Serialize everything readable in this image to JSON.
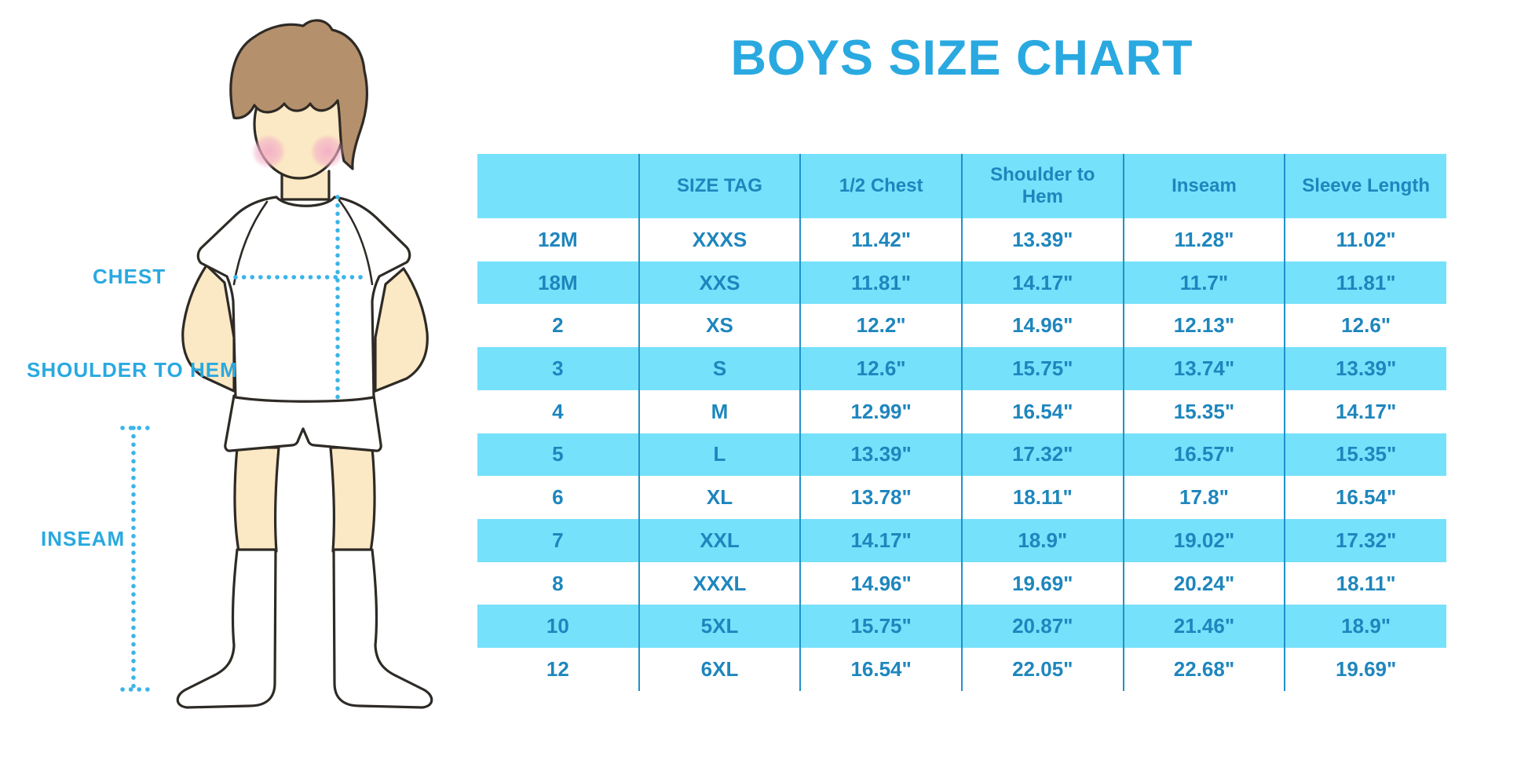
{
  "title": "BOYS SIZE CHART",
  "illustration": {
    "labels": {
      "chest": "CHEST",
      "shoulder_to_hem": "SHOULDER TO HEM",
      "inseam": "INSEAM"
    }
  },
  "colors": {
    "accent_blue": "#29a9e0",
    "table_text_blue": "#1e86bd",
    "row_fill_cyan": "#76e1fb",
    "column_line_blue": "#2191c8",
    "dotted_line_cyan": "#3ab4e8",
    "skin": "#fbe8c4",
    "hair": "#b5906c",
    "blush": "#f3b3c9"
  },
  "chart_data": {
    "type": "table",
    "title": "BOYS SIZE CHART",
    "columns": [
      "",
      "SIZE TAG",
      "1/2 Chest",
      "Shoulder to Hem",
      "Inseam",
      "Sleeve Length"
    ],
    "rows": [
      [
        "12M",
        "XXXS",
        "11.42\"",
        "13.39\"",
        "11.28\"",
        "11.02\""
      ],
      [
        "18M",
        "XXS",
        "11.81\"",
        "14.17\"",
        "11.7\"",
        "11.81\""
      ],
      [
        "2",
        "XS",
        "12.2\"",
        "14.96\"",
        "12.13\"",
        "12.6\""
      ],
      [
        "3",
        "S",
        "12.6\"",
        "15.75\"",
        "13.74\"",
        "13.39\""
      ],
      [
        "4",
        "M",
        "12.99\"",
        "16.54\"",
        "15.35\"",
        "14.17\""
      ],
      [
        "5",
        "L",
        "13.39\"",
        "17.32\"",
        "16.57\"",
        "15.35\""
      ],
      [
        "6",
        "XL",
        "13.78\"",
        "18.11\"",
        "17.8\"",
        "16.54\""
      ],
      [
        "7",
        "XXL",
        "14.17\"",
        "18.9\"",
        "19.02\"",
        "17.32\""
      ],
      [
        "8",
        "XXXL",
        "14.96\"",
        "19.69\"",
        "20.24\"",
        "18.11\""
      ],
      [
        "10",
        "5XL",
        "15.75\"",
        "20.87\"",
        "21.46\"",
        "18.9\""
      ],
      [
        "12",
        "6XL",
        "16.54\"",
        "22.05\"",
        "22.68\"",
        "19.69\""
      ]
    ],
    "row_shading": "alternating white / light-cyan starting with white",
    "units": "inches"
  }
}
